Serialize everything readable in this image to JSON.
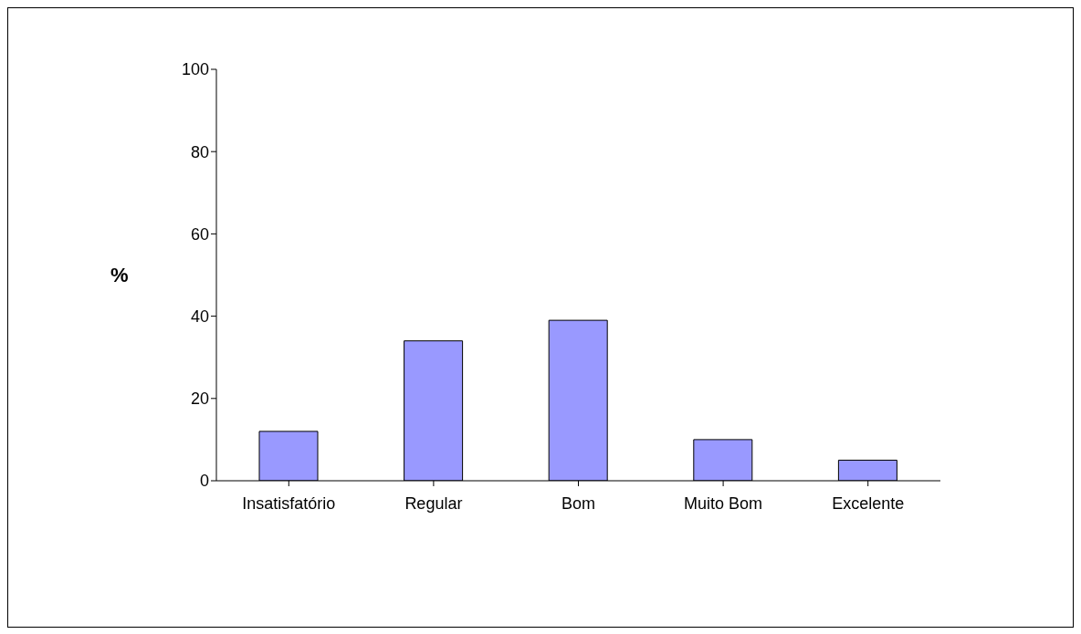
{
  "chart_data": {
    "type": "bar",
    "ylabel": "%",
    "categories": [
      "Insatisfatório",
      "Regular",
      "Bom",
      "Muito Bom",
      "Excelente"
    ],
    "values": [
      12,
      34,
      39,
      10,
      5
    ],
    "color": "#9999ff",
    "ylim": [
      0,
      100
    ],
    "yticks": [
      0,
      20,
      40,
      60,
      80,
      100
    ]
  }
}
